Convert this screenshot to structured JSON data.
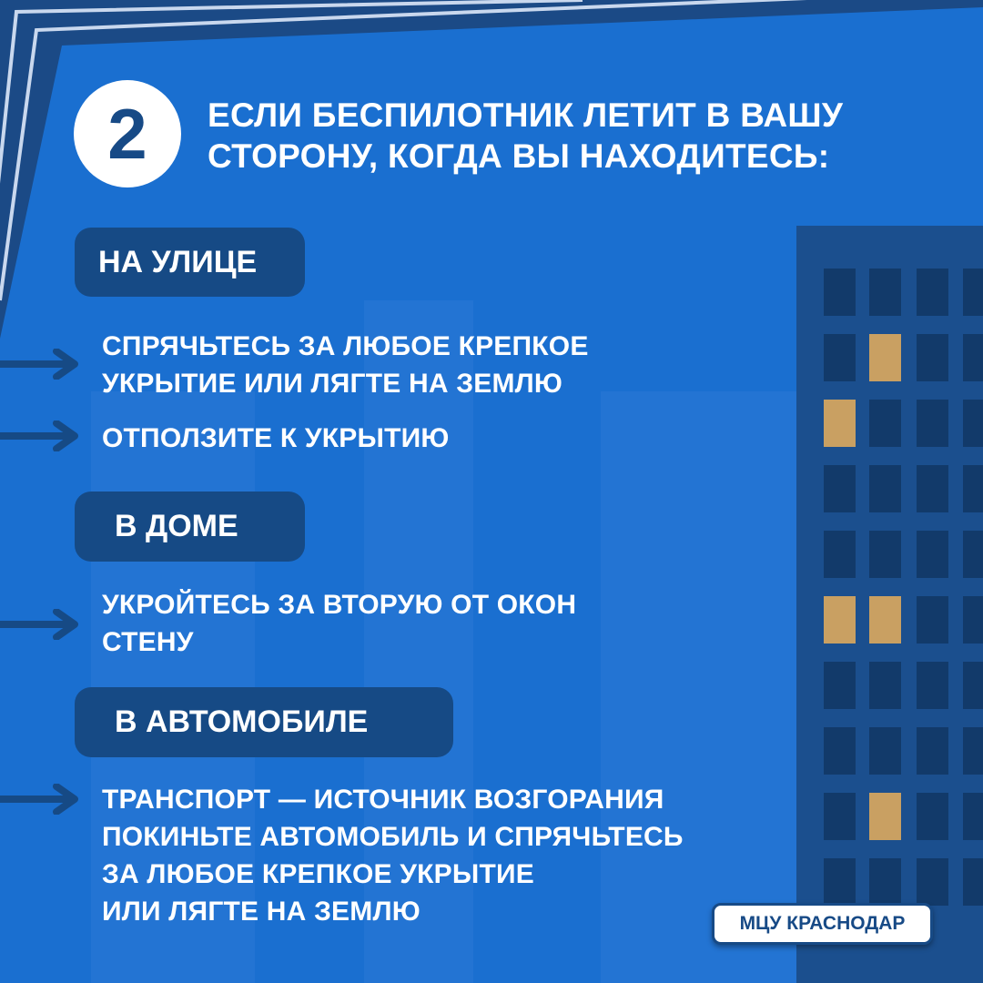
{
  "colors": {
    "background": "#1a6fd0",
    "navy": "#164a85",
    "building": "#1b4f8e",
    "window": "#123a6a",
    "window_lit": "#c9a062",
    "text": "#ffffff"
  },
  "step_number": "2",
  "title": {
    "line1": "ЕСЛИ БЕСПИЛОТНИК ЛЕТИТ В ВАШУ",
    "line2": "СТОРОНУ, КОГДА ВЫ НАХОДИТЕСЬ:"
  },
  "sections": [
    {
      "heading": "НА УЛИЦЕ",
      "items": [
        {
          "lines": [
            "СПРЯЧЬТЕСЬ ЗА ЛЮБОЕ КРЕПКОЕ",
            "УКРЫТИЕ ИЛИ ЛЯГТЕ НА ЗЕМЛЮ"
          ]
        },
        {
          "lines": [
            "ОТПОЛЗИТЕ К УКРЫТИЮ"
          ]
        }
      ]
    },
    {
      "heading": "В ДОМЕ",
      "items": [
        {
          "lines": [
            "УКРОЙТЕСЬ ЗА ВТОРУЮ ОТ ОКОН",
            "СТЕНУ"
          ]
        }
      ]
    },
    {
      "heading": "В АВТОМОБИЛЕ",
      "items": [
        {
          "lines": [
            "ТРАНСПОРТ —  ИСТОЧНИК ВОЗГОРАНИЯ",
            "ПОКИНЬТЕ АВТОМОБИЛЬ И СПРЯЧЬТЕСЬ",
            "ЗА ЛЮБОЕ КРЕПКОЕ УКРЫТИЕ",
            "ИЛИ ЛЯГТЕ НА ЗЕМЛЮ"
          ]
        }
      ]
    }
  ],
  "icons": {
    "bullet": "arrow-right-icon"
  },
  "logo": "МЦУ КРАСНОДАР"
}
